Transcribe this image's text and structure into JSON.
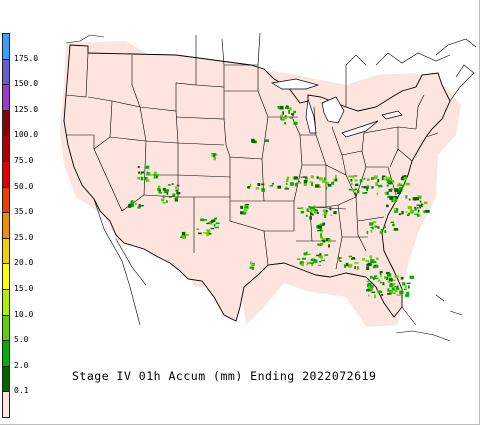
{
  "caption": "Stage IV 01h Accum (mm) Ending 2022072619",
  "legend": {
    "entries": [
      {
        "label": "175.0",
        "color": "#3aa0ff"
      },
      {
        "label": "150.0",
        "color": "#6a5ccc"
      },
      {
        "label": "125.0",
        "color": "#9a3cc8"
      },
      {
        "label": "100.0",
        "color": "#880000"
      },
      {
        "label": "75.0",
        "color": "#b00000"
      },
      {
        "label": "50.0",
        "color": "#e00000"
      },
      {
        "label": "35.0",
        "color": "#f04000"
      },
      {
        "label": "25.0",
        "color": "#f09000"
      },
      {
        "label": "20.0",
        "color": "#f0d000"
      },
      {
        "label": "15.0",
        "color": "#ffff00"
      },
      {
        "label": "10.0",
        "color": "#b0f000"
      },
      {
        "label": "5.0",
        "color": "#60d000"
      },
      {
        "label": "2.0",
        "color": "#00b000"
      },
      {
        "label": "0.1",
        "color": "#006600"
      },
      {
        "label": "",
        "color": "#fde4df"
      }
    ]
  },
  "map": {
    "land_color": "#fde4df",
    "border_color": "#000000",
    "precip_colors": [
      "#006600",
      "#00b000",
      "#60d000"
    ]
  }
}
